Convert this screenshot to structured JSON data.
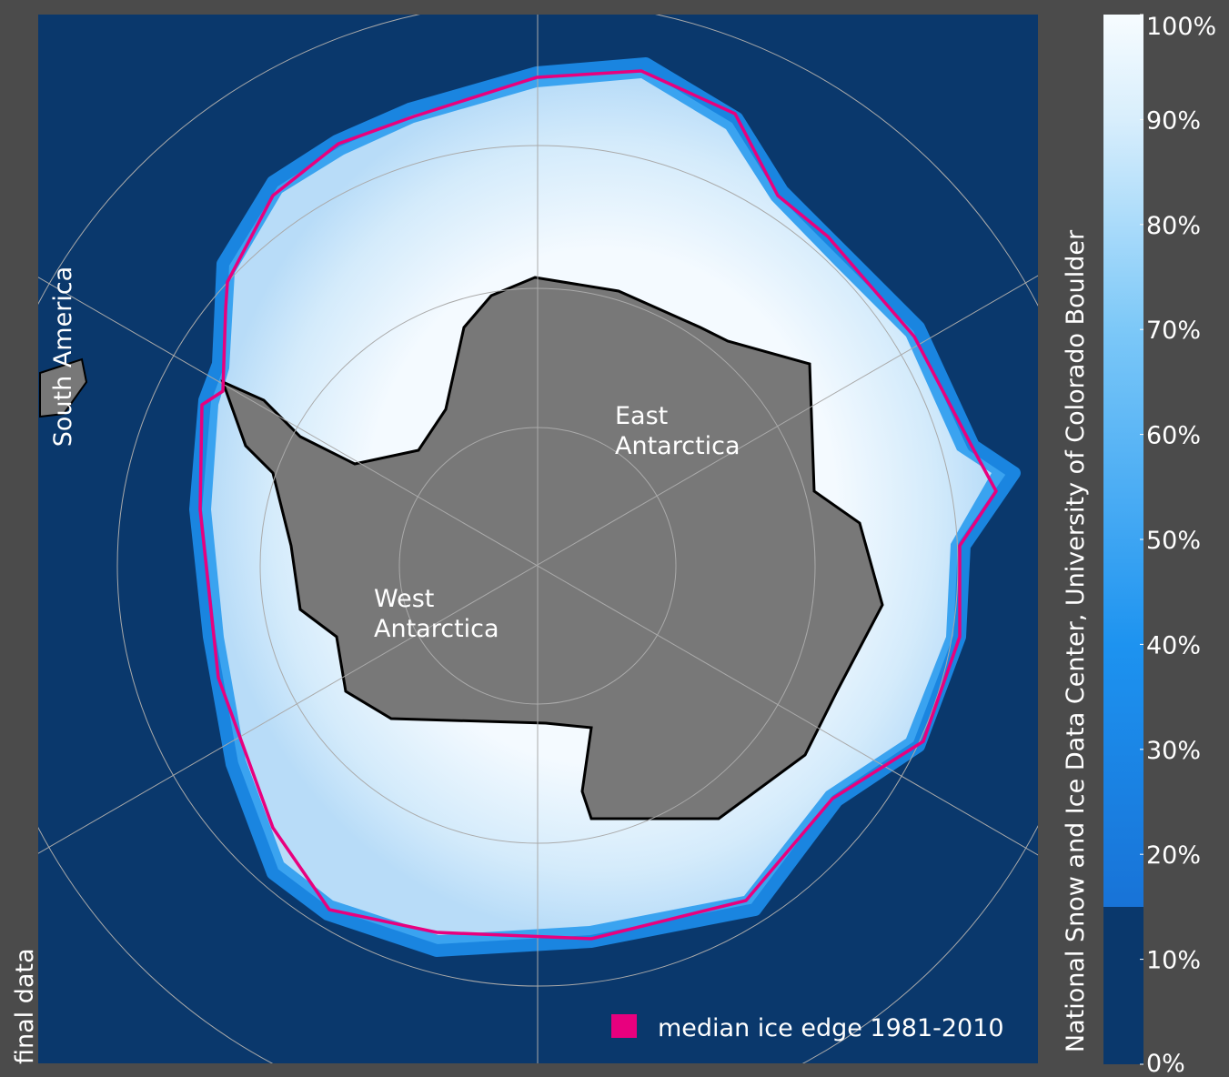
{
  "map": {
    "labels": {
      "south_america": "South America",
      "east_antarctica": [
        "East",
        "Antarctica"
      ],
      "west_antarctica": [
        "West",
        "Antarctica"
      ],
      "status": "final data"
    },
    "legend": {
      "label": "median ice edge 1981-2010",
      "color": "#e8007e"
    },
    "credit": "National Snow and Ice Data Center, University of Colorado Boulder",
    "colorbar": {
      "lim": [
        0,
        100
      ],
      "ticks": [
        {
          "value": 0,
          "label": "0%"
        },
        {
          "value": 10,
          "label": "10%"
        },
        {
          "value": 20,
          "label": "20%"
        },
        {
          "value": 30,
          "label": "30%"
        },
        {
          "value": 40,
          "label": "40%"
        },
        {
          "value": 50,
          "label": "50%"
        },
        {
          "value": 60,
          "label": "60%"
        },
        {
          "value": 70,
          "label": "70%"
        },
        {
          "value": 80,
          "label": "80%"
        },
        {
          "value": 90,
          "label": "90%"
        },
        {
          "value": 100,
          "label": "100%"
        }
      ]
    }
  }
}
